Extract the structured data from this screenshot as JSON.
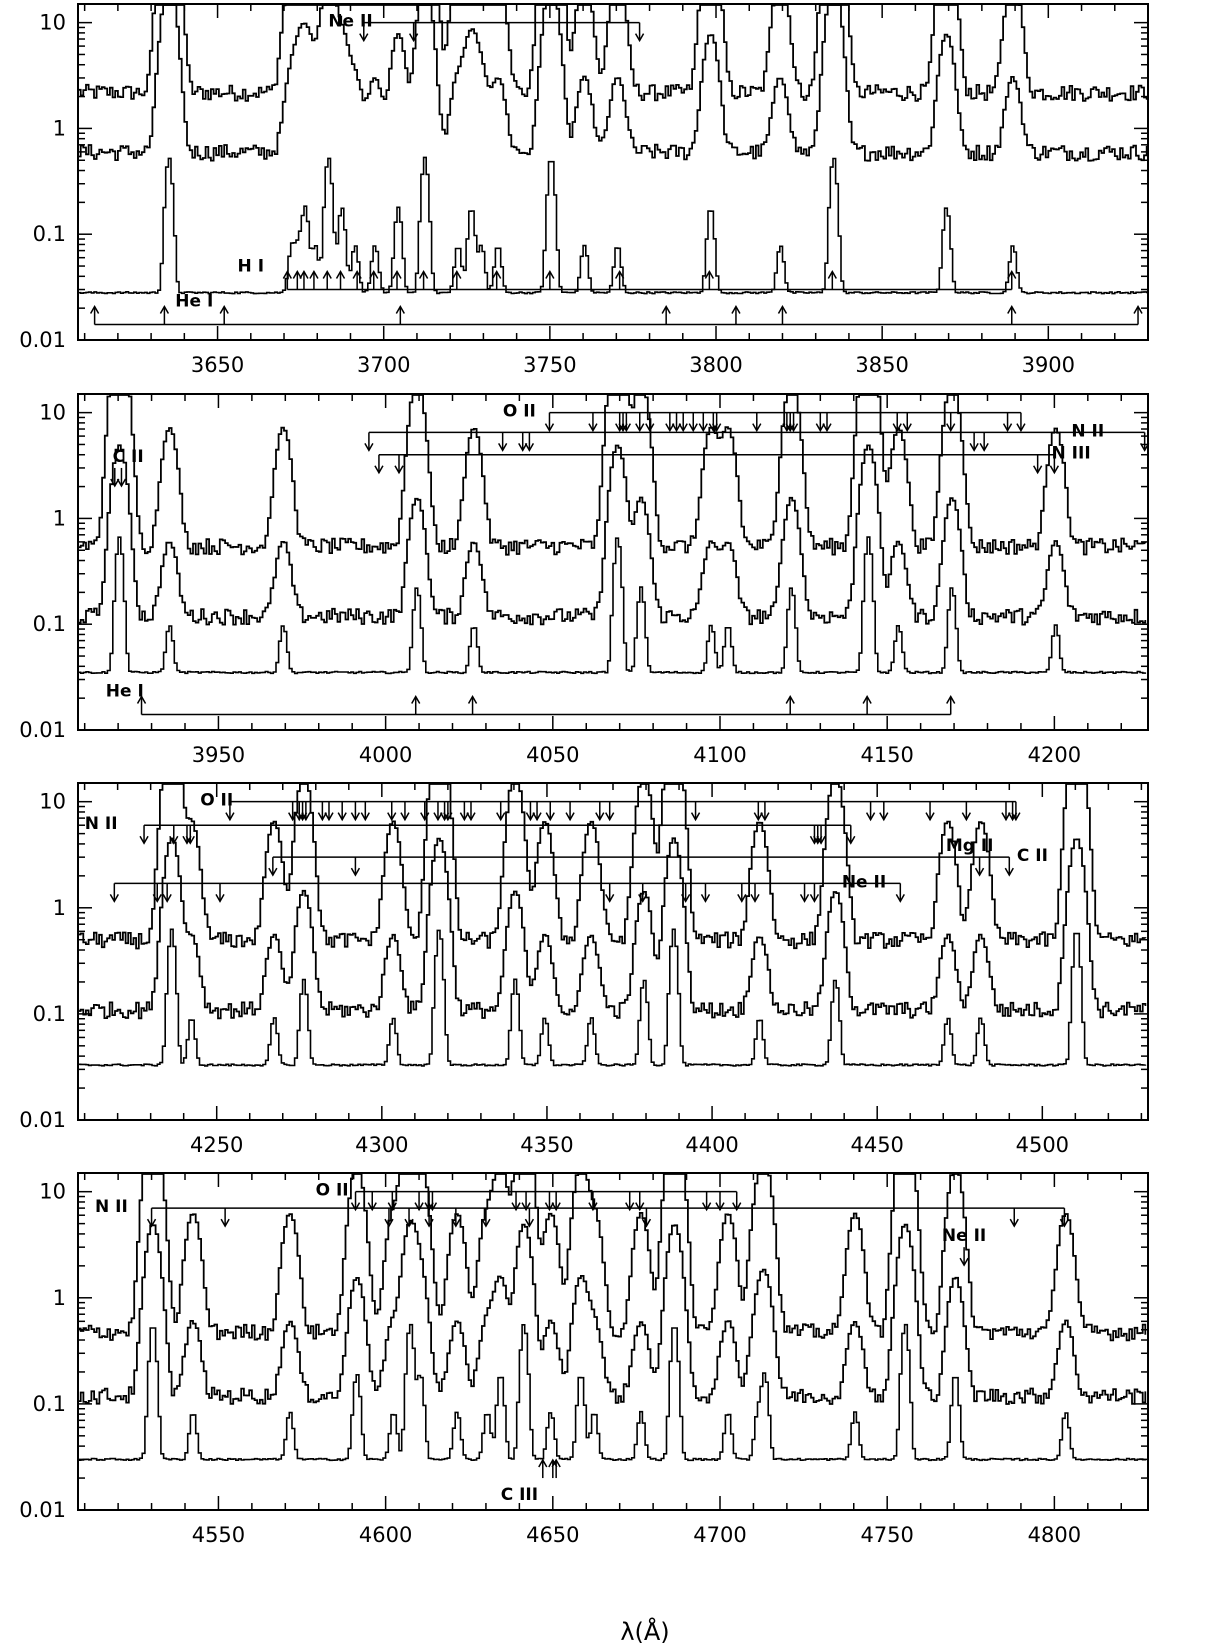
{
  "chart_data": {
    "type": "line",
    "xlabel": "λ(Å)",
    "ylabel": "",
    "yscale": "log",
    "ylim": [
      0.01,
      15
    ],
    "y_ticks": [
      {
        "value": 0.01,
        "label": "0.01"
      },
      {
        "value": 0.1,
        "label": "0.1"
      },
      {
        "value": 1,
        "label": "1"
      },
      {
        "value": 10,
        "label": "10"
      }
    ],
    "panels": [
      {
        "xlim": [
          3608,
          3930
        ],
        "x_ticks": [
          3650,
          3700,
          3750,
          3800,
          3850,
          3900
        ],
        "x_tick_labels": [
          "3650",
          "3700",
          "3750",
          "3800",
          "3850",
          "3900"
        ],
        "baselines": [
          2.2,
          0.6,
          0.028
        ],
        "lines": [
          3635,
          3672,
          3674,
          3676,
          3679,
          3683,
          3687,
          3691,
          3697,
          3704,
          3712,
          3722,
          3726,
          3729,
          3734,
          3750,
          3760,
          3770,
          3798,
          3819,
          3835,
          3869,
          3889
        ],
        "ion_markers": [
          {
            "ion": "Ne II",
            "direction": "down",
            "bracket_level": 10,
            "label_at": 3690,
            "waves": [
              3694,
              3709,
              3777
            ]
          },
          {
            "ion": "H I",
            "direction": "up",
            "bracket_level": 0.03,
            "label_at": 3660,
            "waves": [
              3671,
              3674,
              3676,
              3679,
              3683,
              3687,
              3692,
              3697,
              3704,
              3712,
              3722,
              3734,
              3750,
              3771,
              3798,
              3835,
              3889
            ]
          },
          {
            "ion": "He I",
            "direction": "up",
            "bracket_level": 0.014,
            "label_at": 3643,
            "waves": [
              3613,
              3634,
              3652,
              3705,
              3785,
              3806,
              3820,
              3889,
              3927
            ]
          }
        ]
      },
      {
        "xlim": [
          3908,
          4228
        ],
        "x_ticks": [
          3950,
          4000,
          4050,
          4100,
          4150,
          4200
        ],
        "x_tick_labels": [
          "3950",
          "4000",
          "4050",
          "4100",
          "4150",
          "4200"
        ],
        "baselines": [
          0.55,
          0.12,
          0.035
        ],
        "lines": [
          3920,
          3935,
          3969,
          4009,
          4026,
          4069,
          4076,
          4097,
          4102,
          4121,
          4144,
          4153,
          4169,
          4200
        ],
        "ion_markers": [
          {
            "ion": "C II",
            "direction": "down",
            "label_at": 3923,
            "waves": [
              3919,
              3921
            ]
          },
          {
            "ion": "O II",
            "direction": "down",
            "bracket_level": 10,
            "label_at": 4040,
            "waves": [
              4049,
              4062,
              4070,
              4071,
              4072,
              4076,
              4079,
              4085,
              4087,
              4089,
              4092,
              4095,
              4098,
              4099,
              4111,
              4120,
              4121,
              4122,
              4130,
              4132,
              4153,
              4156,
              4169,
              4186,
              4190
            ]
          },
          {
            "ion": "N II",
            "direction": "down",
            "bracket_level": 6.5,
            "label_at": 4210,
            "waves": [
              3995,
              4035,
              4041,
              4043,
              4176,
              4179,
              4227
            ]
          },
          {
            "ion": "N III",
            "direction": "down",
            "bracket_level": 4,
            "label_at": 4205,
            "waves": [
              3998,
              4004,
              4195,
              4200
            ]
          },
          {
            "ion": "He I",
            "direction": "up",
            "bracket_level": 0.014,
            "label_at": 3922,
            "waves": [
              3927,
              4009,
              4026,
              4121,
              4144,
              4169
            ]
          }
        ]
      },
      {
        "xlim": [
          4208,
          4532
        ],
        "x_ticks": [
          4250,
          4300,
          4350,
          4400,
          4450,
          4500
        ],
        "x_tick_labels": [
          "4250",
          "4300",
          "4350",
          "4400",
          "4450",
          "4500"
        ],
        "baselines": [
          0.5,
          0.11,
          0.033
        ],
        "lines": [
          4236,
          4242,
          4267,
          4276,
          4303,
          4317,
          4340,
          4349,
          4363,
          4379,
          4388,
          4414,
          4437,
          4471,
          4481,
          4510
        ],
        "ion_markers": [
          {
            "ion": "O II",
            "direction": "down",
            "bracket_level": 10,
            "label_at": 4250,
            "waves": [
              4254,
              4273,
              4275,
              4276,
              4277,
              4282,
              4284,
              4288,
              4292,
              4295,
              4303,
              4307,
              4313,
              4317,
              4319,
              4320,
              4325,
              4327,
              4336,
              4345,
              4347,
              4351,
              4357,
              4366,
              4369,
              4395,
              4414,
              4416,
              4448,
              4452,
              4466,
              4477,
              4489,
              4491,
              4492
            ]
          },
          {
            "ion": "N II",
            "direction": "down",
            "bracket_level": 6,
            "label_at": 4215,
            "waves": [
              4228,
              4237,
              4241,
              4242,
              4431,
              4432,
              4433,
              4442
            ]
          },
          {
            "ion": "C II",
            "direction": "down",
            "bracket_level": 3,
            "label_at": 4497,
            "waves": [
              4267,
              4292,
              4490
            ]
          },
          {
            "ion": "Ne II",
            "direction": "down",
            "bracket_level": 1.7,
            "label_at": 4446,
            "waves": [
              4219,
              4232,
              4235,
              4251,
              4369,
              4379,
              4392,
              4398,
              4409,
              4413,
              4428,
              4431,
              4457
            ]
          },
          {
            "ion": "Mg II",
            "direction": "down",
            "label_at": 4478,
            "waves": [
              4481
            ]
          }
        ]
      },
      {
        "xlim": [
          4508,
          4828
        ],
        "x_ticks": [
          4550,
          4600,
          4650,
          4700,
          4750,
          4800
        ],
        "x_tick_labels": [
          "4550",
          "4600",
          "4650",
          "4700",
          "4750",
          "4800"
        ],
        "baselines": [
          0.48,
          0.12,
          0.03
        ],
        "lines": [
          4530,
          4542,
          4571,
          4591,
          4602,
          4607,
          4610,
          4621,
          4630,
          4634,
          4641,
          4649,
          4658,
          4662,
          4676,
          4686,
          4702,
          4711,
          4713,
          4740,
          4755,
          4770,
          4803
        ],
        "ion_markers": [
          {
            "ion": "O II",
            "direction": "down",
            "bracket_level": 10,
            "label_at": 4584,
            "waves": [
              4591,
              4596,
              4602,
              4610,
              4613,
              4614,
              4639,
              4642,
              4649,
              4651,
              4662,
              4673,
              4676,
              4696,
              4700,
              4705
            ]
          },
          {
            "ion": "N II",
            "direction": "down",
            "bracket_level": 7,
            "label_at": 4518,
            "waves": [
              4530,
              4552,
              4601,
              4607,
              4613,
              4621,
              4630,
              4643,
              4678,
              4788,
              4803
            ]
          },
          {
            "ion": "Ne II",
            "direction": "down",
            "label_at": 4773,
            "waves": [
              4773
            ]
          },
          {
            "ion": "C III",
            "direction": "up",
            "label_at": 4640,
            "waves": [
              4647,
              4650,
              4651
            ]
          }
        ]
      }
    ]
  }
}
